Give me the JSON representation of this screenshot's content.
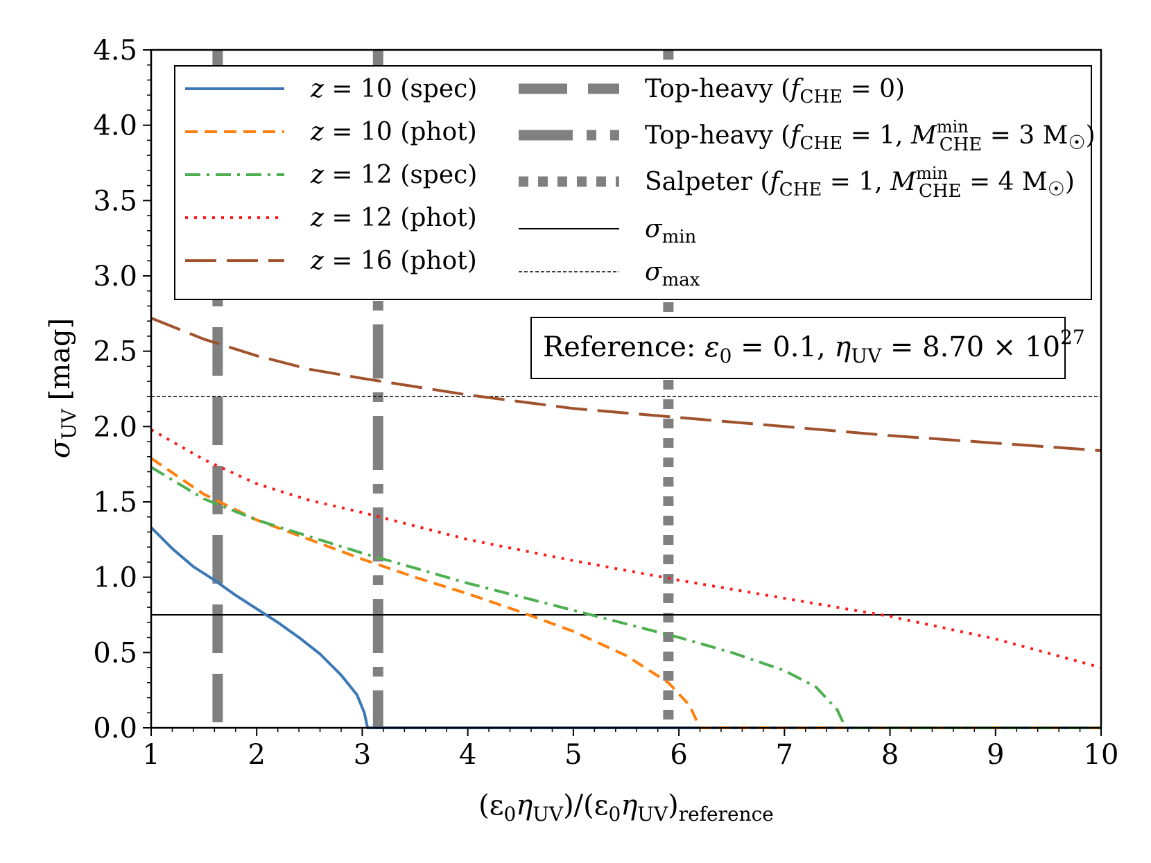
{
  "chart_data": {
    "type": "line",
    "title": "",
    "xlabel": {
      "main": "(ε",
      "sub0": "0",
      "eta": "η",
      "subUV": "UV",
      "mid": ")/(ε",
      "sub0b": "0",
      "etab": "η",
      "subUVb": "UV",
      "close": ")",
      "subref": "reference"
    },
    "ylabel": {
      "main": "σ",
      "sub": "UV",
      "unit": " [mag]"
    },
    "xlim": [
      1,
      10
    ],
    "ylim": [
      0,
      4.5
    ],
    "xticks": [
      1,
      2,
      3,
      4,
      5,
      6,
      7,
      8,
      9,
      10
    ],
    "xtick_labels": [
      "1",
      "2",
      "3",
      "4",
      "5",
      "6",
      "7",
      "8",
      "9",
      "10"
    ],
    "yticks": [
      0,
      0.5,
      1.0,
      1.5,
      2.0,
      2.5,
      3.0,
      3.5,
      4.0,
      4.5
    ],
    "ytick_labels": [
      "0.0",
      "0.5",
      "1.0",
      "1.5",
      "2.0",
      "2.5",
      "3.0",
      "3.5",
      "4.0",
      "4.5"
    ],
    "series": [
      {
        "name": "z = 10 (spec)",
        "label_z": "z",
        "label_rest": " = 10 (spec)",
        "color": "#3b78b5",
        "dash": "",
        "width": 4,
        "points": [
          [
            1,
            1.33
          ],
          [
            1.2,
            1.19
          ],
          [
            1.4,
            1.07
          ],
          [
            1.6,
            0.98
          ],
          [
            1.8,
            0.88
          ],
          [
            2.0,
            0.79
          ],
          [
            2.2,
            0.7
          ],
          [
            2.4,
            0.6
          ],
          [
            2.6,
            0.49
          ],
          [
            2.8,
            0.35
          ],
          [
            2.95,
            0.22
          ],
          [
            3.02,
            0.1
          ],
          [
            3.05,
            0.0
          ],
          [
            10,
            0.0
          ]
        ]
      },
      {
        "name": "z = 10 (phot)",
        "label_z": "z",
        "label_rest": " = 10 (phot)",
        "color": "#ff7f0e",
        "dash": "18,10",
        "width": 4,
        "points": [
          [
            1,
            1.79
          ],
          [
            1.5,
            1.55
          ],
          [
            2,
            1.38
          ],
          [
            2.5,
            1.25
          ],
          [
            3,
            1.12
          ],
          [
            3.5,
            1.0
          ],
          [
            4,
            0.89
          ],
          [
            4.5,
            0.77
          ],
          [
            5,
            0.64
          ],
          [
            5.5,
            0.48
          ],
          [
            5.9,
            0.3
          ],
          [
            6.1,
            0.15
          ],
          [
            6.2,
            0.0
          ],
          [
            10,
            0.0
          ]
        ]
      },
      {
        "name": "z = 12 (spec)",
        "label_z": "z",
        "label_rest": " = 12 (spec)",
        "color": "#4caf50",
        "dash": "22,9,4,9",
        "width": 4,
        "points": [
          [
            1,
            1.73
          ],
          [
            1.5,
            1.52
          ],
          [
            2,
            1.38
          ],
          [
            2.5,
            1.27
          ],
          [
            3,
            1.16
          ],
          [
            3.5,
            1.06
          ],
          [
            4,
            0.96
          ],
          [
            4.5,
            0.87
          ],
          [
            5,
            0.78
          ],
          [
            5.5,
            0.69
          ],
          [
            6,
            0.6
          ],
          [
            6.5,
            0.5
          ],
          [
            7,
            0.38
          ],
          [
            7.3,
            0.27
          ],
          [
            7.5,
            0.12
          ],
          [
            7.58,
            0.0
          ],
          [
            10,
            0.0
          ]
        ]
      },
      {
        "name": "z = 12 (phot)",
        "label_z": "z",
        "label_rest": " = 12 (phot)",
        "color": "#ff1a1a",
        "dash": "4,9",
        "width": 4,
        "points": [
          [
            1,
            1.98
          ],
          [
            1.5,
            1.78
          ],
          [
            2,
            1.62
          ],
          [
            2.5,
            1.51
          ],
          [
            3,
            1.43
          ],
          [
            3.5,
            1.34
          ],
          [
            4,
            1.25
          ],
          [
            5,
            1.11
          ],
          [
            6,
            0.98
          ],
          [
            7,
            0.86
          ],
          [
            8,
            0.74
          ],
          [
            9,
            0.59
          ],
          [
            10,
            0.4
          ]
        ]
      },
      {
        "name": "z = 16 (phot)",
        "label_z": "z",
        "label_rest": " = 16 (phot)",
        "color": "#a0522d",
        "dash": "45,15",
        "width": 4,
        "points": [
          [
            1,
            2.72
          ],
          [
            1.5,
            2.58
          ],
          [
            2,
            2.47
          ],
          [
            2.5,
            2.38
          ],
          [
            3,
            2.32
          ],
          [
            4,
            2.21
          ],
          [
            5,
            2.12
          ],
          [
            6,
            2.06
          ],
          [
            7,
            2.0
          ],
          [
            8,
            1.94
          ],
          [
            9,
            1.89
          ],
          [
            10,
            1.84
          ]
        ]
      }
    ],
    "vertical_lines": [
      {
        "x": 1.63,
        "name": "Top-heavy (fCHE = 0)",
        "dash": "70,30",
        "color": "#808080",
        "label_pre": "Top-heavy (",
        "label_f": "f",
        "label_fsub": "CHE",
        "label_mid": " = 0)"
      },
      {
        "x": 3.15,
        "name": "Top-heavy (fCHE = 1, MCHEmin = 3 M☉)",
        "dash": "78,20,14,20",
        "color": "#808080",
        "label_pre": "Top-heavy (",
        "label_f": "f",
        "label_fsub": "CHE",
        "label_mid": " = 1, ",
        "label_M": "M",
        "label_Msup": "min",
        "label_Msub": "CHE",
        "label_end": " = 3 M",
        "label_sun": "☉",
        "label_close": ")"
      },
      {
        "x": 5.9,
        "name": "Salpeter (fCHE = 1, MCHEmin = 4 M☉)",
        "dash": "14,14",
        "color": "#808080",
        "label_pre": "Salpeter (",
        "label_f": "f",
        "label_fsub": "CHE",
        "label_mid": " = 1, ",
        "label_M": "M",
        "label_Msup": "min",
        "label_Msub": "CHE",
        "label_end": " = 4 M",
        "label_sun": "☉",
        "label_close": ")"
      }
    ],
    "horizontal_lines": [
      {
        "y": 0.75,
        "name": "σmin",
        "label_s": "σ",
        "label_sub": "min",
        "dash": "",
        "width": 2
      },
      {
        "y": 2.2,
        "name": "σmax",
        "label_s": "σ",
        "label_sub": "max",
        "dash": "5,3",
        "width": 1.5
      }
    ],
    "reference_box": {
      "pre": "Reference: ",
      "eps": "ε",
      "eps_sub": "0",
      "eq1": " = 0.1, ",
      "eta": "η",
      "eta_sub": "UV",
      "eq2": " = 8.70 × 10",
      "exp": "27"
    },
    "legend_position": "top"
  }
}
